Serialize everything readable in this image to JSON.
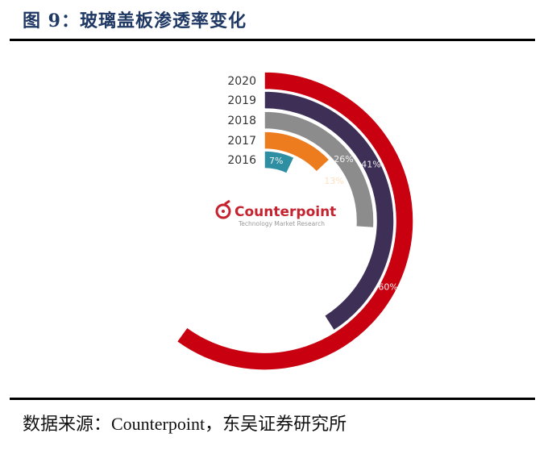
{
  "header": {
    "title": "图 9：玻璃盖板渗透率变化"
  },
  "footer": {
    "source": "数据来源：Counterpoint，东吴证券研究所"
  },
  "logo": {
    "brand": "Counterpoint",
    "tagline": "Technology Market Research",
    "icon": "counterpoint-logo-icon",
    "color": "#c4232f"
  },
  "chart_data": {
    "type": "radial-bar",
    "title": "玻璃盖板渗透率变化",
    "categories": [
      "2016",
      "2017",
      "2018",
      "2019",
      "2020"
    ],
    "values": [
      7,
      13,
      26,
      41,
      60
    ],
    "value_labels": [
      "7%",
      "13%",
      "26%",
      "41%",
      "60%"
    ],
    "unit": "%",
    "colors": [
      "#2e8fa3",
      "#ec7c1e",
      "#8c8c8c",
      "#3d2f55",
      "#c8000f"
    ],
    "sweep_basis": "percent of 360 degrees, clockwise from 12 o'clock",
    "source": "Counterpoint"
  }
}
